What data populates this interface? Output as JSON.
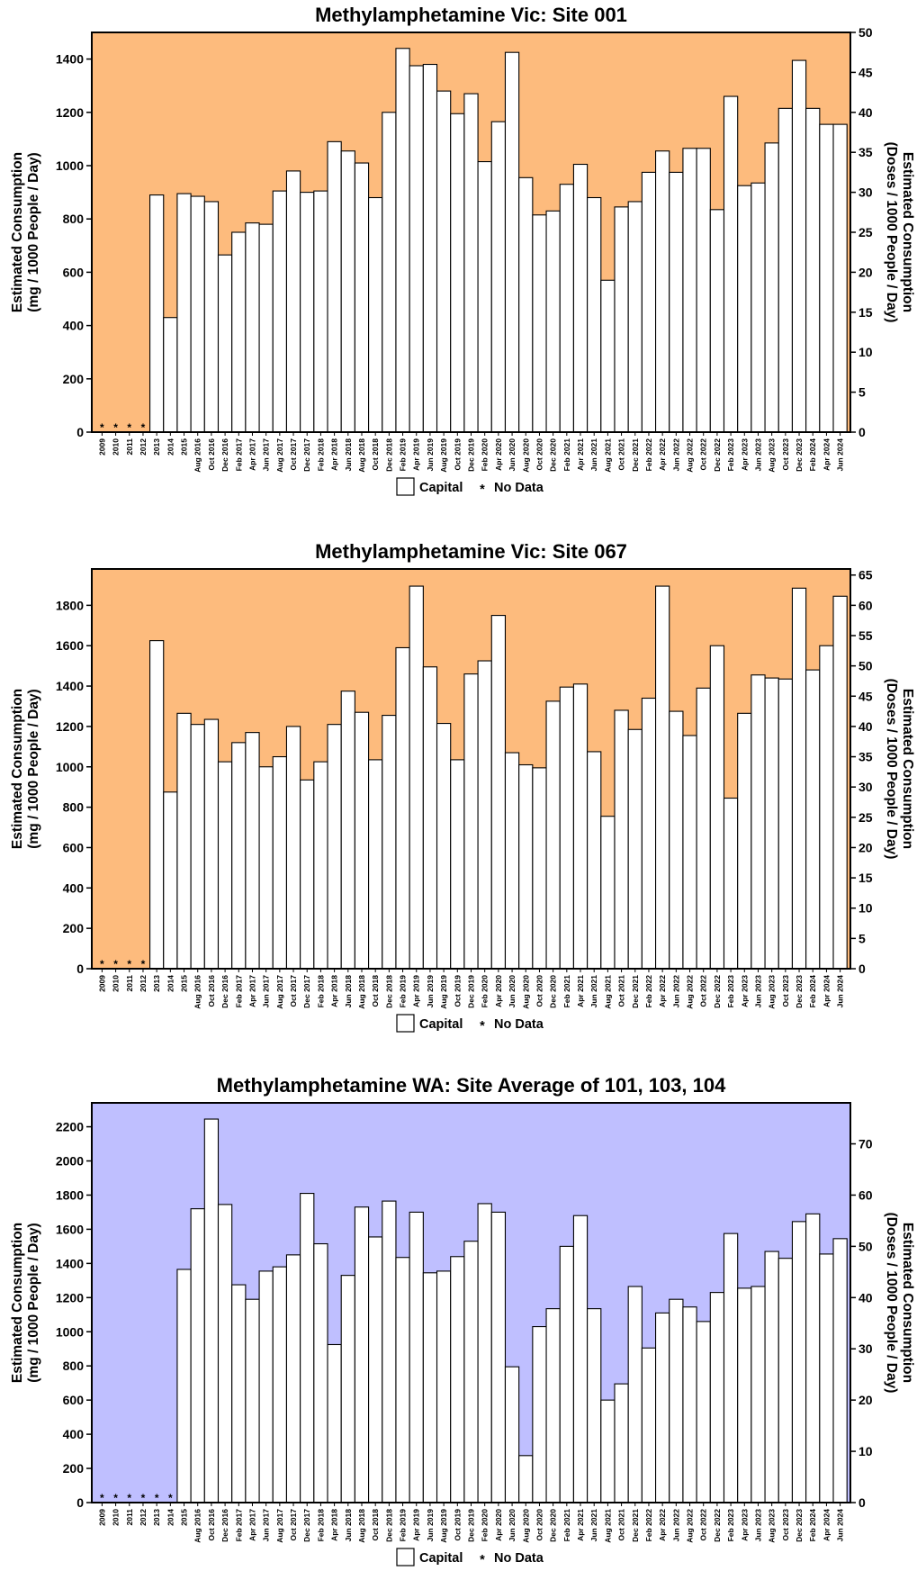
{
  "legend": {
    "capital": "Capital",
    "no_data_marker": "*",
    "no_data": "No Data"
  },
  "chart_data": [
    {
      "type": "bar",
      "title": "Methylamphetamine Vic: Site 001",
      "ylabel_left": [
        "Estimated Consumption",
        "(mg / 1000 People / Day)"
      ],
      "ylabel_right": [
        "Estimated Consumption",
        "(Doses / 1000 People / Day)"
      ],
      "ylim": [
        0,
        1500
      ],
      "yticks": [
        0,
        200,
        400,
        600,
        800,
        1000,
        1200,
        1400
      ],
      "ylim_right": [
        0,
        50
      ],
      "yticks_right": [
        0,
        5,
        10,
        15,
        20,
        25,
        30,
        35,
        40,
        45,
        50
      ],
      "background": "#FDBB7D",
      "bar_fill": "#ffffff",
      "categories": [
        "2009",
        "2010",
        "2011",
        "2012",
        "2013",
        "2014",
        "2015",
        "Aug 2016",
        "Oct 2016",
        "Dec 2016",
        "Feb 2017",
        "Apr 2017",
        "Jun 2017",
        "Aug 2017",
        "Oct 2017",
        "Dec 2017",
        "Feb 2018",
        "Apr 2018",
        "Jun 2018",
        "Aug 2018",
        "Oct 2018",
        "Dec 2018",
        "Feb 2019",
        "Apr 2019",
        "Jun 2019",
        "Aug 2019",
        "Oct 2019",
        "Dec 2019",
        "Feb 2020",
        "Apr 2020",
        "Jun 2020",
        "Aug 2020",
        "Oct 2020",
        "Dec 2020",
        "Feb 2021",
        "Apr 2021",
        "Jun 2021",
        "Aug 2021",
        "Oct 2021",
        "Dec 2021",
        "Feb 2022",
        "Apr 2022",
        "Jun 2022",
        "Aug 2022",
        "Oct 2022",
        "Dec 2022",
        "Feb 2023",
        "Apr 2023",
        "Jun 2023",
        "Aug 2023",
        "Oct 2023",
        "Dec 2023",
        "Feb 2024",
        "Apr 2024",
        "Jun 2024"
      ],
      "series": [
        {
          "name": "Capital",
          "values": [
            null,
            null,
            null,
            null,
            890,
            430,
            895,
            885,
            865,
            665,
            750,
            785,
            780,
            905,
            980,
            900,
            905,
            1090,
            1055,
            1010,
            880,
            1200,
            1440,
            1375,
            1380,
            1280,
            1195,
            1270,
            1015,
            1165,
            1425,
            955,
            815,
            830,
            930,
            1005,
            880,
            570,
            845,
            865,
            975,
            1055,
            975,
            1065,
            1065,
            835,
            1260,
            925,
            935,
            1085,
            1215,
            1395,
            1215,
            1155,
            1155
          ]
        }
      ]
    },
    {
      "type": "bar",
      "title": "Methylamphetamine Vic: Site 067",
      "ylabel_left": [
        "Estimated Consumption",
        "(mg / 1000 People / Day)"
      ],
      "ylabel_right": [
        "Estimated Consumption",
        "(Doses / 1000 People / Day)"
      ],
      "ylim": [
        0,
        1980
      ],
      "yticks": [
        0,
        200,
        400,
        600,
        800,
        1000,
        1200,
        1400,
        1600,
        1800
      ],
      "ylim_right": [
        0,
        66
      ],
      "yticks_right": [
        0,
        5,
        10,
        15,
        20,
        25,
        30,
        35,
        40,
        45,
        50,
        55,
        60,
        65
      ],
      "background": "#FDBB7D",
      "bar_fill": "#ffffff",
      "categories": [
        "2009",
        "2010",
        "2011",
        "2012",
        "2013",
        "2014",
        "2015",
        "Aug 2016",
        "Oct 2016",
        "Dec 2016",
        "Feb 2017",
        "Apr 2017",
        "Jun 2017",
        "Aug 2017",
        "Oct 2017",
        "Dec 2017",
        "Feb 2018",
        "Apr 2018",
        "Jun 2018",
        "Aug 2018",
        "Oct 2018",
        "Dec 2018",
        "Feb 2019",
        "Apr 2019",
        "Jun 2019",
        "Aug 2019",
        "Oct 2019",
        "Dec 2019",
        "Feb 2020",
        "Apr 2020",
        "Jun 2020",
        "Aug 2020",
        "Oct 2020",
        "Dec 2020",
        "Feb 2021",
        "Apr 2021",
        "Jun 2021",
        "Aug 2021",
        "Oct 2021",
        "Dec 2021",
        "Feb 2022",
        "Apr 2022",
        "Jun 2022",
        "Aug 2022",
        "Oct 2022",
        "Dec 2022",
        "Feb 2023",
        "Apr 2023",
        "Jun 2023",
        "Aug 2023",
        "Oct 2023",
        "Dec 2023",
        "Feb 2024",
        "Apr 2024",
        "Jun 2024"
      ],
      "series": [
        {
          "name": "Capital",
          "values": [
            null,
            null,
            null,
            null,
            1625,
            875,
            1265,
            1210,
            1235,
            1025,
            1120,
            1170,
            1000,
            1050,
            1200,
            935,
            1025,
            1210,
            1375,
            1270,
            1035,
            1255,
            1590,
            1895,
            1495,
            1215,
            1035,
            1460,
            1525,
            1750,
            1070,
            1010,
            995,
            1325,
            1395,
            1410,
            1075,
            755,
            1280,
            1185,
            1340,
            1895,
            1275,
            1155,
            1390,
            1600,
            845,
            1265,
            1455,
            1440,
            1435,
            1885,
            1480,
            1600,
            1845
          ]
        }
      ]
    },
    {
      "type": "bar",
      "title": "Methylamphetamine WA: Site Average of 101, 103, 104",
      "ylabel_left": [
        "Estimated Consumption",
        "(mg / 1000 People / Day)"
      ],
      "ylabel_right": [
        "Estimated Consumption",
        "(Doses / 1000 People / Day)"
      ],
      "ylim": [
        0,
        2340
      ],
      "yticks": [
        0,
        200,
        400,
        600,
        800,
        1000,
        1200,
        1400,
        1600,
        1800,
        2000,
        2200
      ],
      "ylim_right": [
        0,
        78
      ],
      "yticks_right": [
        0,
        10,
        20,
        30,
        40,
        50,
        60,
        70
      ],
      "background": "#BFBFFF",
      "bar_fill": "#ffffff",
      "categories": [
        "2009",
        "2010",
        "2011",
        "2012",
        "2013",
        "2014",
        "2015",
        "Aug 2016",
        "Oct 2016",
        "Dec 2016",
        "Feb 2017",
        "Apr 2017",
        "Jun 2017",
        "Aug 2017",
        "Oct 2017",
        "Dec 2017",
        "Feb 2018",
        "Apr 2018",
        "Jun 2018",
        "Aug 2018",
        "Oct 2018",
        "Dec 2018",
        "Feb 2019",
        "Apr 2019",
        "Jun 2019",
        "Aug 2019",
        "Oct 2019",
        "Dec 2019",
        "Feb 2020",
        "Apr 2020",
        "Jun 2020",
        "Aug 2020",
        "Oct 2020",
        "Dec 2020",
        "Feb 2021",
        "Apr 2021",
        "Jun 2021",
        "Aug 2021",
        "Oct 2021",
        "Dec 2021",
        "Feb 2022",
        "Apr 2022",
        "Jun 2022",
        "Aug 2022",
        "Oct 2022",
        "Dec 2022",
        "Feb 2023",
        "Apr 2023",
        "Jun 2023",
        "Aug 2023",
        "Oct 2023",
        "Dec 2023",
        "Feb 2024",
        "Apr 2024",
        "Jun 2024"
      ],
      "series": [
        {
          "name": "Capital",
          "values": [
            null,
            null,
            null,
            null,
            null,
            null,
            1365,
            1720,
            2245,
            1745,
            1275,
            1190,
            1355,
            1380,
            1450,
            1810,
            1515,
            925,
            1330,
            1730,
            1555,
            1765,
            1435,
            1700,
            1345,
            1355,
            1440,
            1530,
            1750,
            1700,
            795,
            275,
            1030,
            1135,
            1500,
            1680,
            1135,
            600,
            695,
            1265,
            905,
            1110,
            1190,
            1145,
            1060,
            1230,
            1575,
            1255,
            1265,
            1470,
            1430,
            1645,
            1690,
            1455,
            1545
          ]
        }
      ]
    }
  ]
}
